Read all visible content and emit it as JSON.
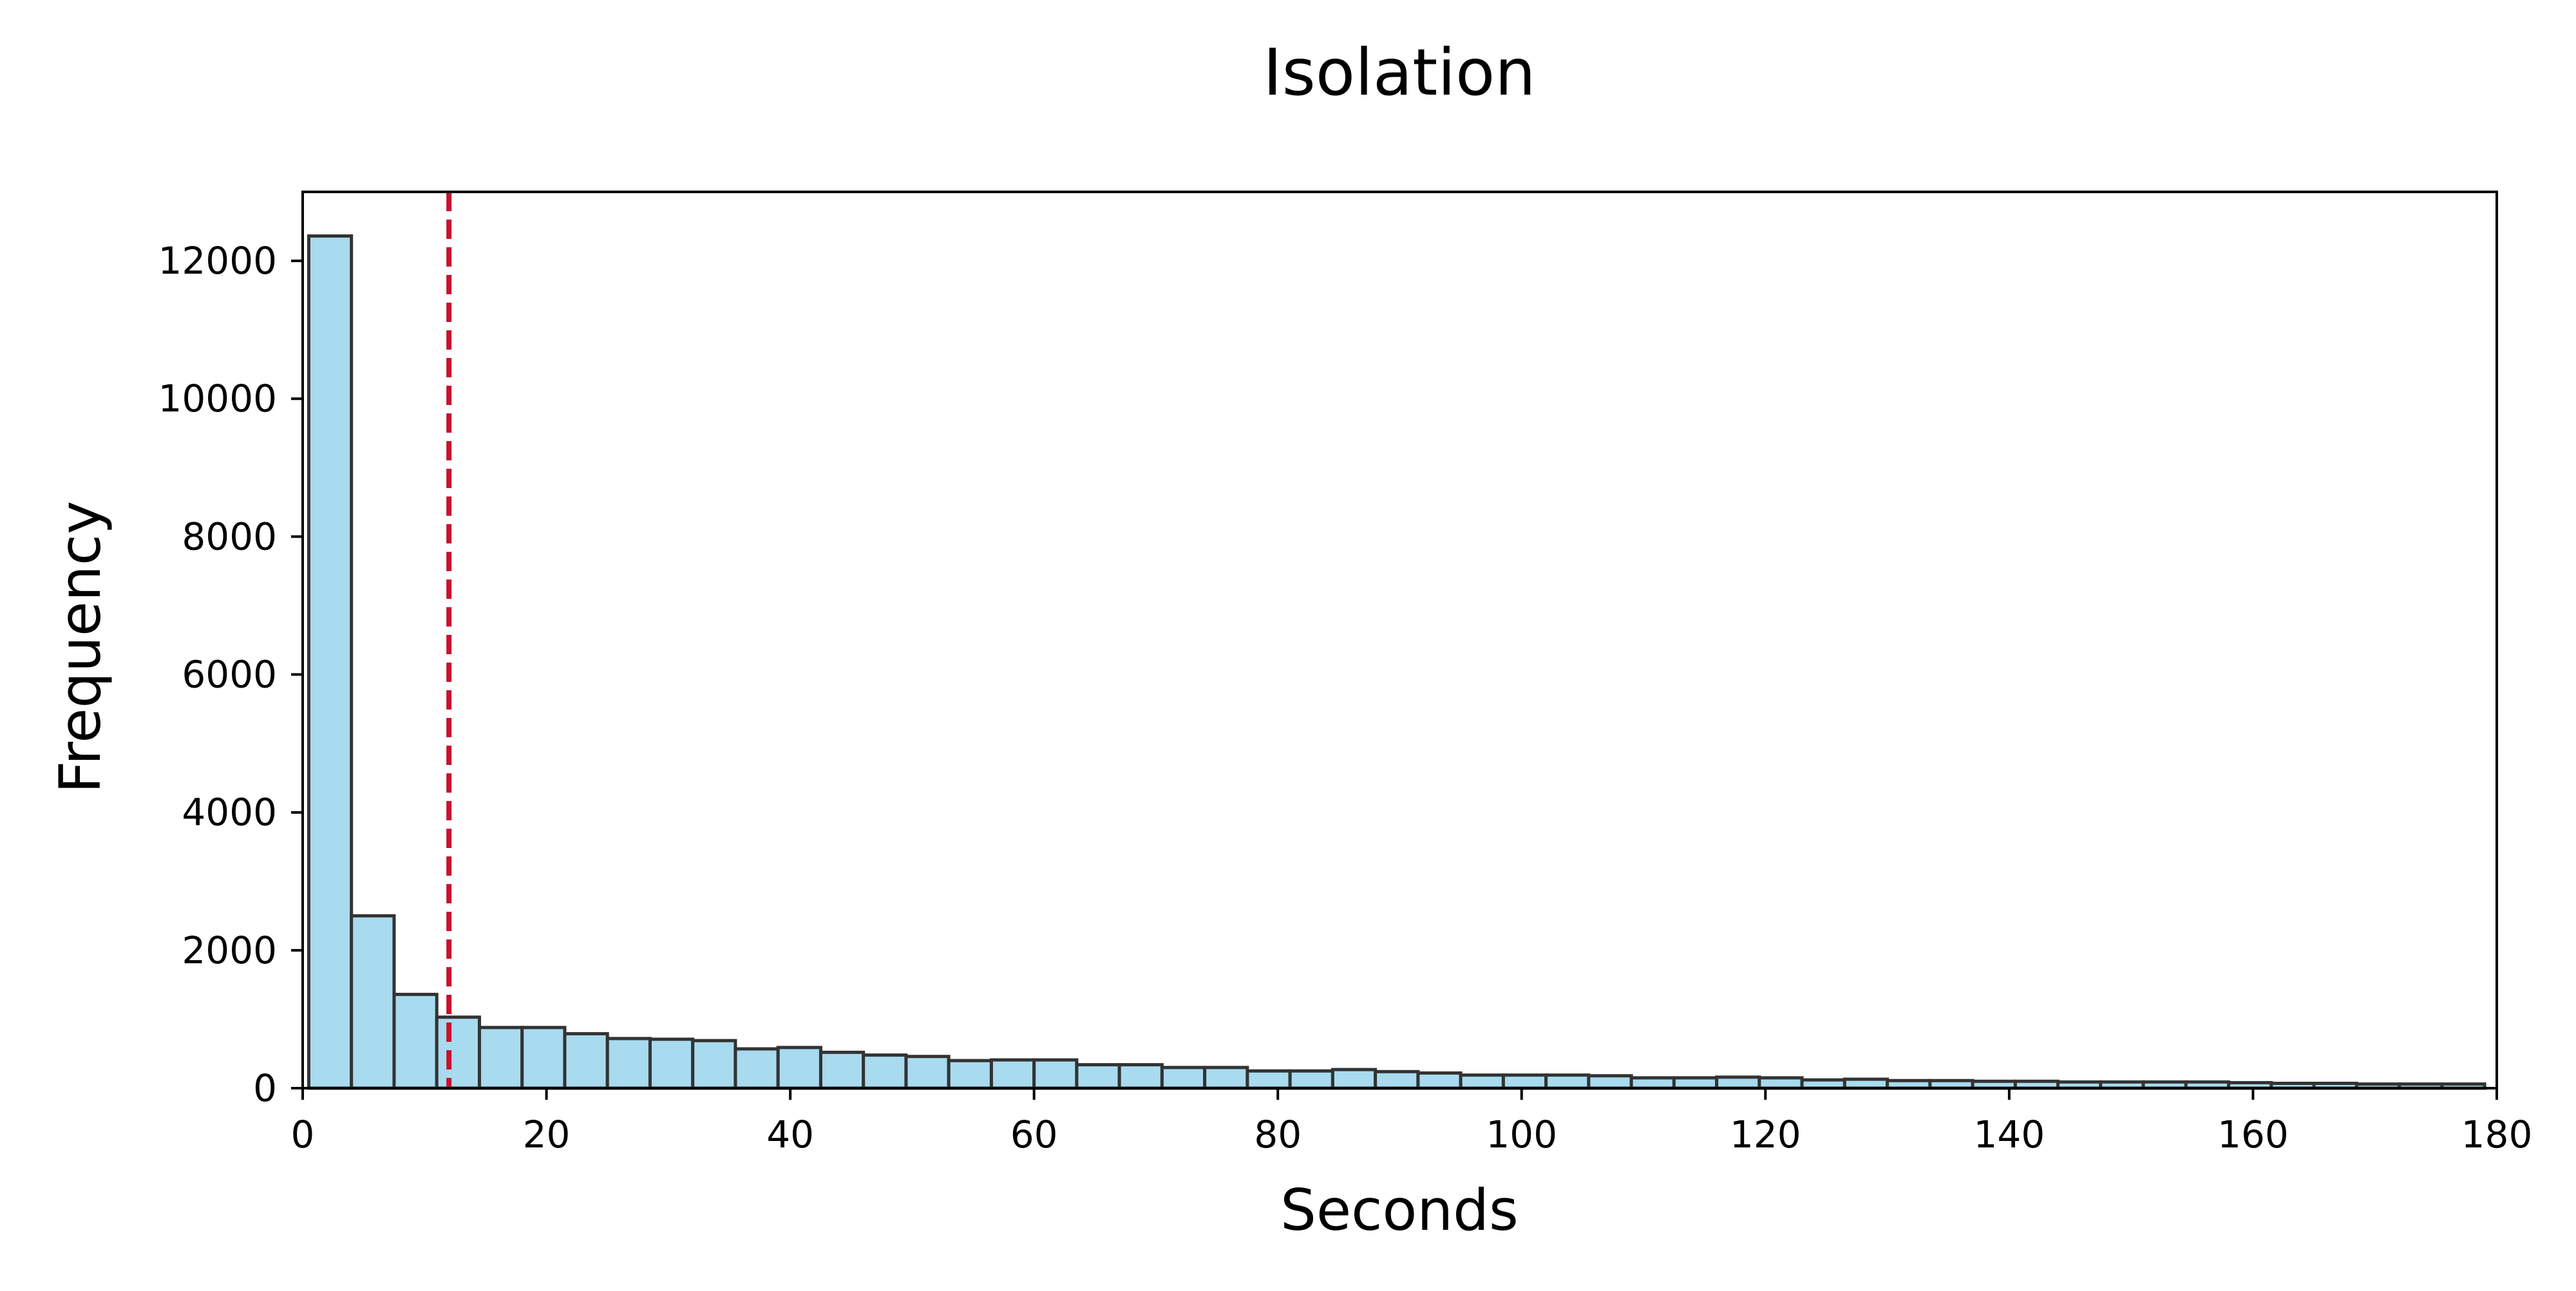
{
  "chart_data": {
    "type": "bar",
    "title": "Isolation",
    "xlabel": "Seconds",
    "ylabel": "Frequency",
    "xlim": [
      0,
      180
    ],
    "ylim": [
      0,
      13000
    ],
    "xticks": [
      0,
      20,
      40,
      60,
      80,
      100,
      120,
      140,
      160,
      180
    ],
    "yticks": [
      0,
      2000,
      4000,
      6000,
      8000,
      10000,
      12000
    ],
    "bin_start": 0.5,
    "bin_width": 3.5,
    "values": [
      12360,
      2500,
      1360,
      1030,
      880,
      880,
      790,
      720,
      710,
      690,
      570,
      590,
      520,
      480,
      460,
      400,
      410,
      410,
      340,
      340,
      300,
      300,
      250,
      250,
      270,
      240,
      220,
      190,
      190,
      190,
      180,
      150,
      150,
      160,
      150,
      120,
      130,
      110,
      110,
      100,
      100,
      90,
      90,
      90,
      90,
      80,
      70,
      70,
      60,
      60,
      60
    ],
    "vline": {
      "x": 12,
      "style": "dashed",
      "color": "#c8102e"
    },
    "bar_fill": "#a8dbef",
    "bar_edge": "#333333",
    "grid": false
  }
}
